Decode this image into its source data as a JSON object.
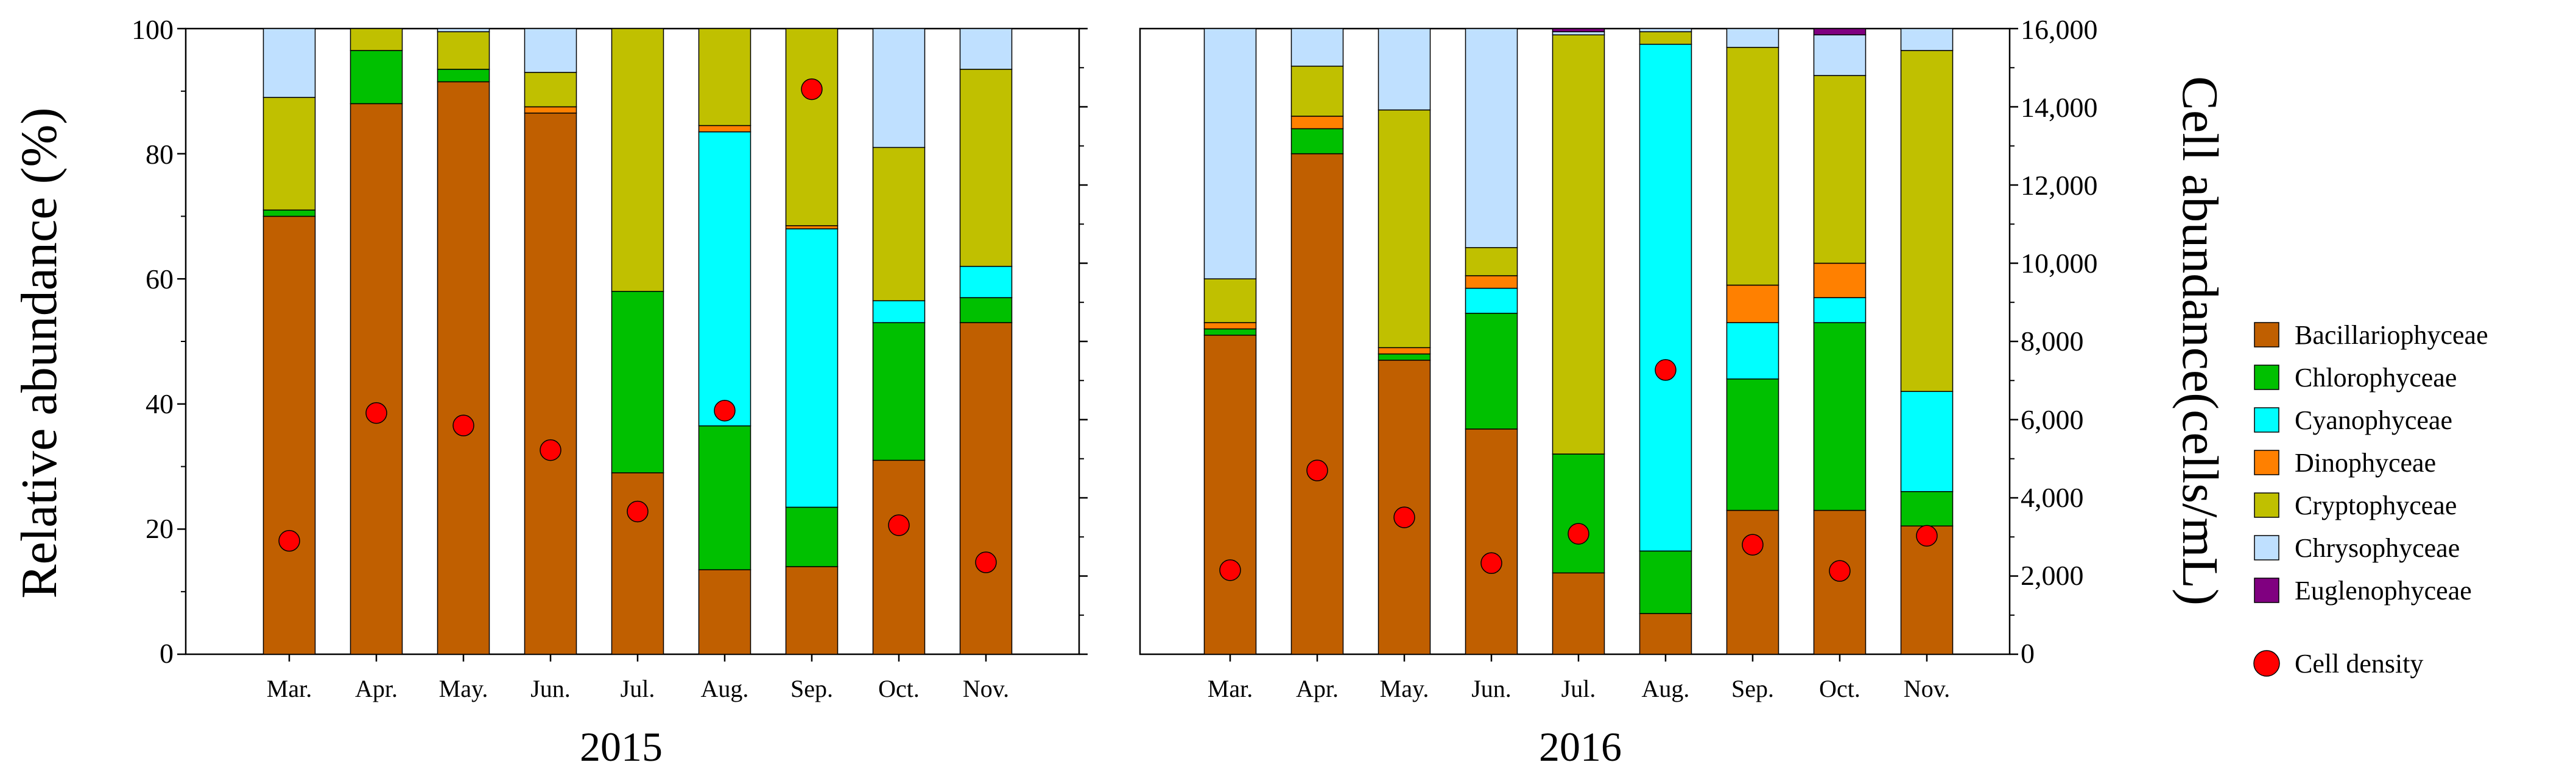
{
  "chart_data": {
    "type": "stacked-bar-with-scatter",
    "left_axis": {
      "title": "Relative abundance (%)",
      "ylim": [
        0,
        100
      ],
      "ticks": [
        0,
        20,
        40,
        60,
        80,
        100
      ]
    },
    "right_axis": {
      "title": "Cell abundance(cells/mL)",
      "ylim": [
        0,
        16000
      ],
      "ticks": [
        0,
        2000,
        4000,
        6000,
        8000,
        10000,
        12000,
        14000,
        16000
      ],
      "tick_labels": [
        "0",
        "2,000",
        "4,000",
        "6,000",
        "8,000",
        "10,000",
        "12,000",
        "14,000",
        "16,000"
      ]
    },
    "series_names": [
      "Bacillariophyceae",
      "Chlorophyceae",
      "Cyanophyceae",
      "Dinophyceae",
      "Cryptophyceae",
      "Chrysophyceae",
      "Euglenophyceae"
    ],
    "colors": [
      "#C05F00",
      "#00C000",
      "#00FFFF",
      "#FF8000",
      "#C0C000",
      "#BFE0FF",
      "#800080"
    ],
    "density_color": "#FF0000",
    "density_label": "Cell density",
    "panels": [
      {
        "year": "2015",
        "categories": [
          "Mar.",
          "Apr.",
          "May.",
          "Jun.",
          "Jul.",
          "Aug.",
          "Sep.",
          "Oct.",
          "Nov."
        ],
        "series": [
          {
            "name": "Bacillariophyceae",
            "values": [
              70,
              88,
              91.5,
              86.5,
              29,
              13.5,
              14,
              31,
              53
            ]
          },
          {
            "name": "Chlorophyceae",
            "values": [
              1,
              8.5,
              2,
              0,
              29,
              23,
              9.5,
              22,
              4
            ]
          },
          {
            "name": "Cyanophyceae",
            "values": [
              0,
              0,
              0,
              0,
              0,
              47,
              44.5,
              3.5,
              5
            ]
          },
          {
            "name": "Dinophyceae",
            "values": [
              0,
              0,
              0,
              1,
              0,
              1,
              0.5,
              0,
              0
            ]
          },
          {
            "name": "Cryptophyceae",
            "values": [
              18,
              3.5,
              6,
              5.5,
              42,
              15.5,
              31.5,
              24.5,
              31.5
            ]
          },
          {
            "name": "Chrysophyceae",
            "values": [
              11,
              0,
              0.5,
              7,
              0,
              0,
              0,
              19,
              6.5
            ]
          },
          {
            "name": "Euglenophyceae",
            "values": [
              0,
              0,
              0,
              0,
              0,
              0,
              0,
              0,
              0
            ]
          }
        ],
        "cell_density": [
          2900,
          6170,
          5850,
          5220,
          3650,
          6230,
          14450,
          3300,
          2350
        ]
      },
      {
        "year": "2016",
        "categories": [
          "Mar.",
          "Apr.",
          "May.",
          "Jun.",
          "Jul.",
          "Aug.",
          "Sep.",
          "Oct.",
          "Nov."
        ],
        "series": [
          {
            "name": "Bacillariophyceae",
            "values": [
              51,
              80,
              47,
              36,
              13,
              6.5,
              23,
              23,
              20.5
            ]
          },
          {
            "name": "Chlorophyceae",
            "values": [
              1,
              4,
              1,
              18.5,
              19,
              10,
              21,
              30,
              5.5
            ]
          },
          {
            "name": "Cyanophyceae",
            "values": [
              0,
              0,
              0,
              4,
              0,
              81,
              9,
              4,
              16
            ]
          },
          {
            "name": "Dinophyceae",
            "values": [
              1,
              2,
              1,
              2,
              0,
              0,
              6,
              5.5,
              0
            ]
          },
          {
            "name": "Cryptophyceae",
            "values": [
              7,
              8,
              38,
              4.5,
              67,
              2,
              38,
              30,
              54.5
            ]
          },
          {
            "name": "Chrysophyceae",
            "values": [
              40,
              6,
              13,
              35,
              0.5,
              0.5,
              3,
              6.5,
              3.5
            ]
          },
          {
            "name": "Euglenophyceae",
            "values": [
              0,
              0,
              0,
              0,
              0.5,
              0,
              0,
              1,
              0
            ]
          }
        ],
        "cell_density": [
          2150,
          4700,
          3500,
          2330,
          3080,
          7270,
          2800,
          2130,
          3030
        ]
      }
    ]
  }
}
